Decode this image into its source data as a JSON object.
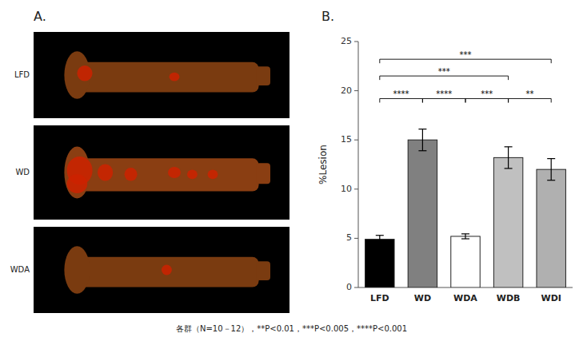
{
  "chart_data": {
    "type": "bar",
    "title": "B.",
    "categories": [
      "LFD",
      "WD",
      "WDA",
      "WDB",
      "WDI"
    ],
    "values": [
      4.9,
      15.0,
      5.2,
      13.2,
      12.0
    ],
    "errors": [
      0.4,
      1.1,
      0.25,
      1.1,
      1.1
    ],
    "colors": [
      "#000000",
      "#808080",
      "#ffffff",
      "#c0c0c0",
      "#b0b0b0"
    ],
    "ylabel": "%Lesion",
    "ylim": [
      0,
      25
    ],
    "yticks": [
      0,
      5,
      10,
      15,
      20,
      25
    ],
    "grid": false,
    "annotations": [
      {
        "from": "LFD",
        "to": "WD",
        "y": 19.2,
        "text": "****"
      },
      {
        "from": "WD",
        "to": "WDA",
        "y": 19.2,
        "text": "****"
      },
      {
        "from": "WDA",
        "to": "WDB",
        "y": 19.2,
        "text": "***"
      },
      {
        "from": "WDB",
        "to": "WDI",
        "y": 19.2,
        "text": "**"
      },
      {
        "from": "LFD",
        "to": "WDB",
        "y": 21.5,
        "text": "***"
      },
      {
        "from": "LFD",
        "to": "WDI",
        "y": 23.2,
        "text": "***"
      }
    ],
    "image_panel": {
      "title": "A.",
      "labels": [
        "LFD",
        "WD",
        "WDA"
      ]
    },
    "footnote": "各群（N=10－12），**P<0.01，***P<0.005，****P<0.001"
  }
}
